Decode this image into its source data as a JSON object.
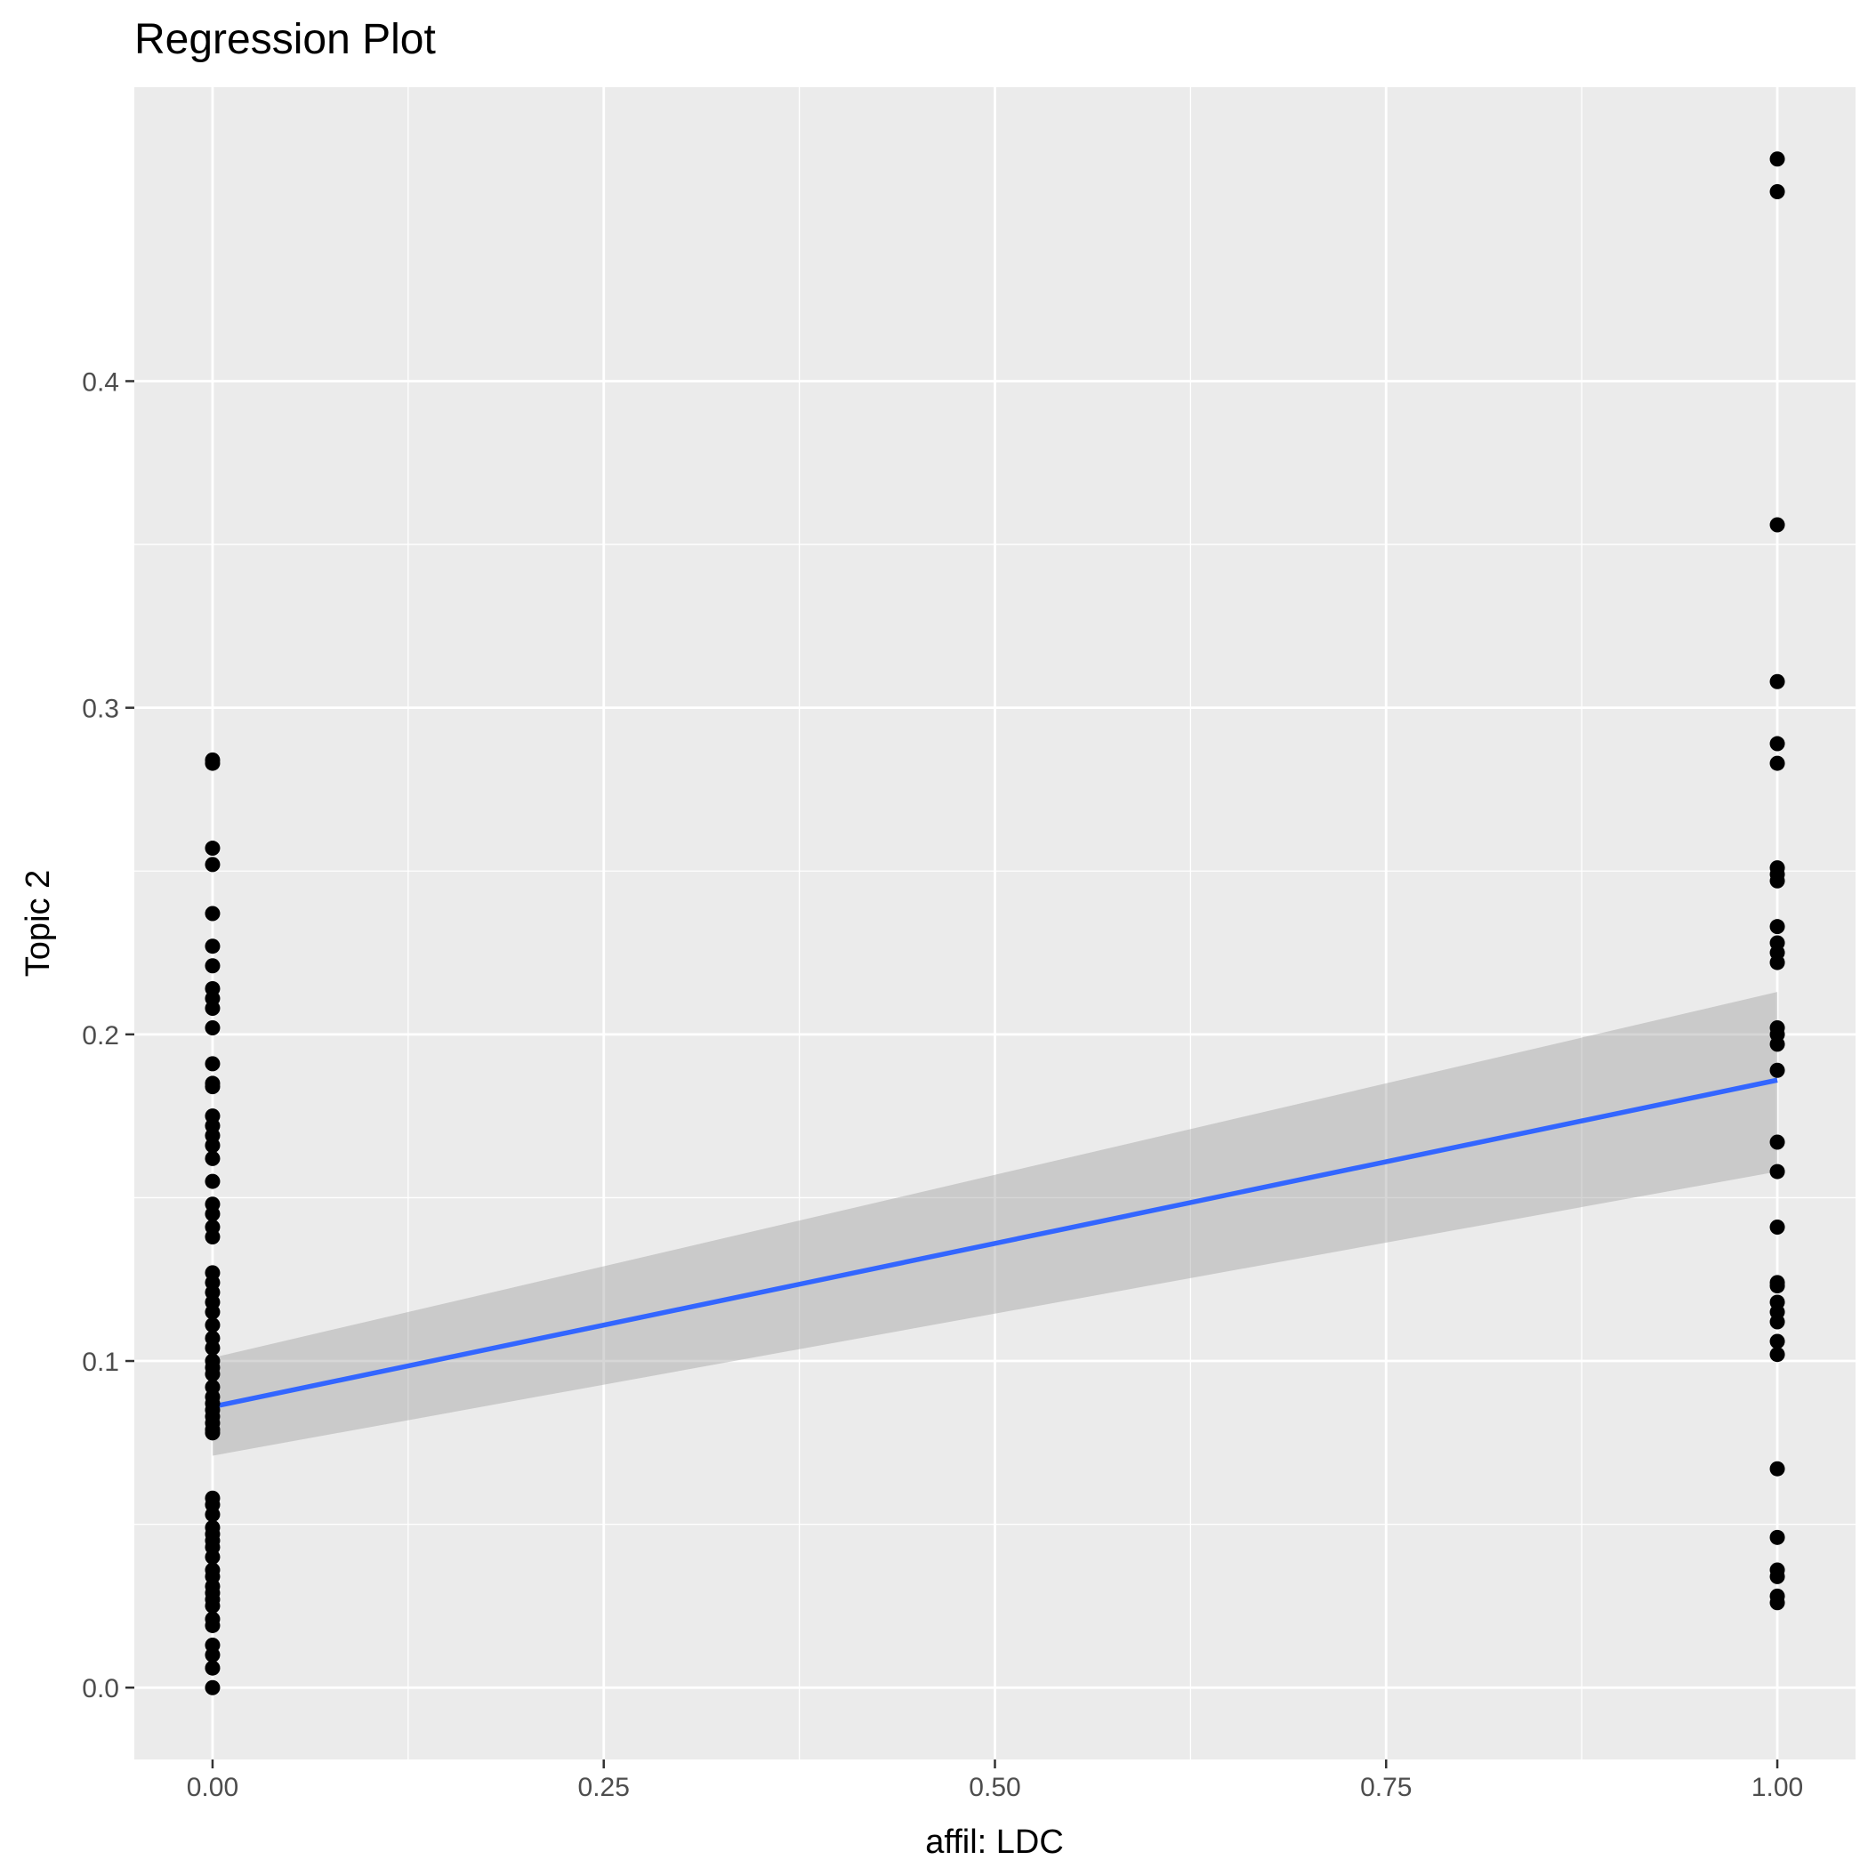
{
  "chart_data": {
    "type": "scatter",
    "title": "Regression Plot",
    "xlabel": "affil: LDC",
    "ylabel": "Topic 2",
    "xlim": [
      -0.05,
      1.05
    ],
    "ylim": [
      -0.022,
      0.49
    ],
    "x_ticks": [
      0,
      0.25,
      0.5,
      0.75,
      1
    ],
    "x_tick_labels": [
      "0.00",
      "0.25",
      "0.50",
      "0.75",
      "1.00"
    ],
    "y_ticks": [
      0,
      0.1,
      0.2,
      0.3,
      0.4
    ],
    "y_tick_labels": [
      "0.0",
      "0.1",
      "0.2",
      "0.3",
      "0.4"
    ],
    "grid": true,
    "series": [
      {
        "x": 0,
        "values": [
          0.283,
          0.284,
          0.257,
          0.252,
          0.237,
          0.227,
          0.221,
          0.214,
          0.211,
          0.208,
          0.202,
          0.191,
          0.185,
          0.184,
          0.175,
          0.172,
          0.169,
          0.166,
          0.162,
          0.155,
          0.148,
          0.145,
          0.141,
          0.138,
          0.127,
          0.124,
          0.121,
          0.118,
          0.115,
          0.111,
          0.107,
          0.104,
          0.1,
          0.098,
          0.096,
          0.092,
          0.089,
          0.087,
          0.085,
          0.083,
          0.081,
          0.079,
          0.078,
          0.058,
          0.056,
          0.053,
          0.049,
          0.047,
          0.045,
          0.043,
          0.04,
          0.036,
          0.034,
          0.031,
          0.029,
          0.027,
          0.025,
          0.021,
          0.019,
          0.013,
          0.01,
          0.006,
          0.0
        ]
      },
      {
        "x": 1,
        "values": [
          0.468,
          0.458,
          0.356,
          0.308,
          0.289,
          0.283,
          0.251,
          0.249,
          0.247,
          0.233,
          0.228,
          0.225,
          0.222,
          0.202,
          0.2,
          0.197,
          0.189,
          0.167,
          0.158,
          0.141,
          0.124,
          0.123,
          0.118,
          0.115,
          0.112,
          0.106,
          0.102,
          0.067,
          0.046,
          0.036,
          0.034,
          0.028,
          0.026
        ]
      }
    ],
    "regression": {
      "x": [
        0,
        1
      ],
      "y": [
        0.086,
        0.186
      ],
      "ci_lower": [
        0.071,
        0.158
      ],
      "ci_upper": [
        0.101,
        0.213
      ],
      "line_color": "#3366ff",
      "ci_color": "#999999"
    },
    "colors": {
      "panel": "#ebebeb",
      "grid": "#ffffff",
      "point": "#000000"
    }
  }
}
